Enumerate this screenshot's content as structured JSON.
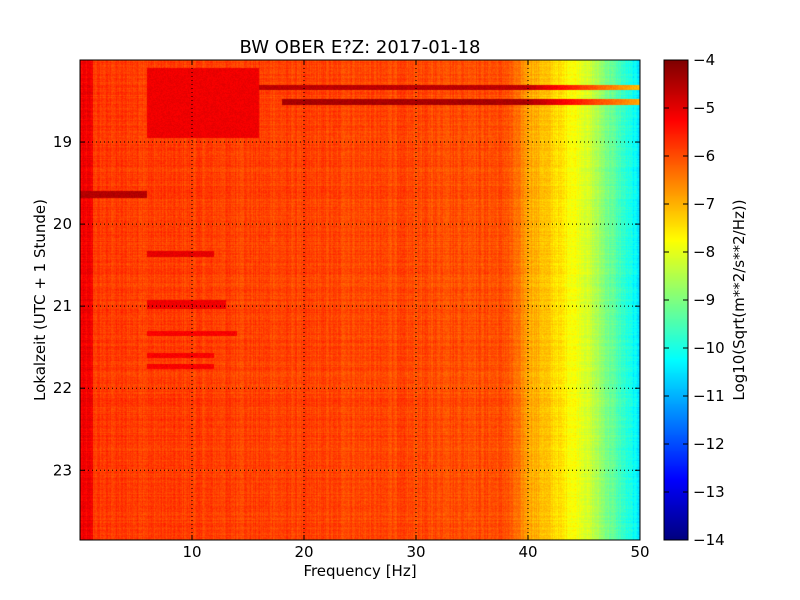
{
  "chart_data": {
    "type": "heatmap",
    "title": "BW OBER E?Z: 2017-01-18",
    "xlabel": "Frequency [Hz]",
    "ylabel": "Lokalzeit (UTC + 1 Stunde)",
    "xlim": [
      0,
      50
    ],
    "ylim": [
      18.0,
      23.85
    ],
    "y_inverted": true,
    "x_ticks": [
      10,
      20,
      30,
      40,
      50
    ],
    "x_tick_labels": [
      "10",
      "20",
      "30",
      "40",
      "50"
    ],
    "y_ticks": [
      19,
      20,
      21,
      22,
      23
    ],
    "y_tick_labels": [
      "19",
      "20",
      "21",
      "22",
      "23"
    ],
    "grid": true,
    "colormap": "jet",
    "colorbar": {
      "label": "Log10(Sqrt(m**2/s**2/Hz))",
      "range": [
        -14,
        -4
      ],
      "ticks": [
        -4,
        -5,
        -6,
        -7,
        -8,
        -9,
        -10,
        -11,
        -12,
        -13,
        -14
      ],
      "tick_labels": [
        "−4",
        "−5",
        "−6",
        "−7",
        "−8",
        "−9",
        "−10",
        "−11",
        "−12",
        "−13",
        "−14"
      ]
    },
    "levels": {
      "baseline_low_freq": -5.8,
      "baseline_mid_freq": -6.0,
      "at_40hz": -6.8,
      "at_45hz": -8.0,
      "at_50hz": -10.5
    },
    "features": [
      {
        "time_start": 18.3,
        "time_end": 18.36,
        "freq_start": 16,
        "freq_end": 50,
        "level": -4.6
      },
      {
        "time_start": 18.48,
        "time_end": 18.55,
        "freq_start": 18,
        "freq_end": 50,
        "level": -4.4
      },
      {
        "time_start": 18.1,
        "time_end": 18.95,
        "freq_start": 6,
        "freq_end": 16,
        "level": -5.1
      },
      {
        "time_start": 19.6,
        "time_end": 19.68,
        "freq_start": 0,
        "freq_end": 6,
        "level": -4.5
      },
      {
        "time_start": 20.33,
        "time_end": 20.4,
        "freq_start": 6,
        "freq_end": 12,
        "level": -5.0
      },
      {
        "time_start": 20.93,
        "time_end": 21.03,
        "freq_start": 6,
        "freq_end": 13,
        "level": -5.1
      },
      {
        "time_start": 21.3,
        "time_end": 21.36,
        "freq_start": 6,
        "freq_end": 14,
        "level": -5.2
      },
      {
        "time_start": 21.57,
        "time_end": 21.63,
        "freq_start": 6,
        "freq_end": 12,
        "level": -5.2
      },
      {
        "time_start": 21.7,
        "time_end": 21.76,
        "freq_start": 6,
        "freq_end": 12,
        "level": -5.2
      }
    ]
  }
}
